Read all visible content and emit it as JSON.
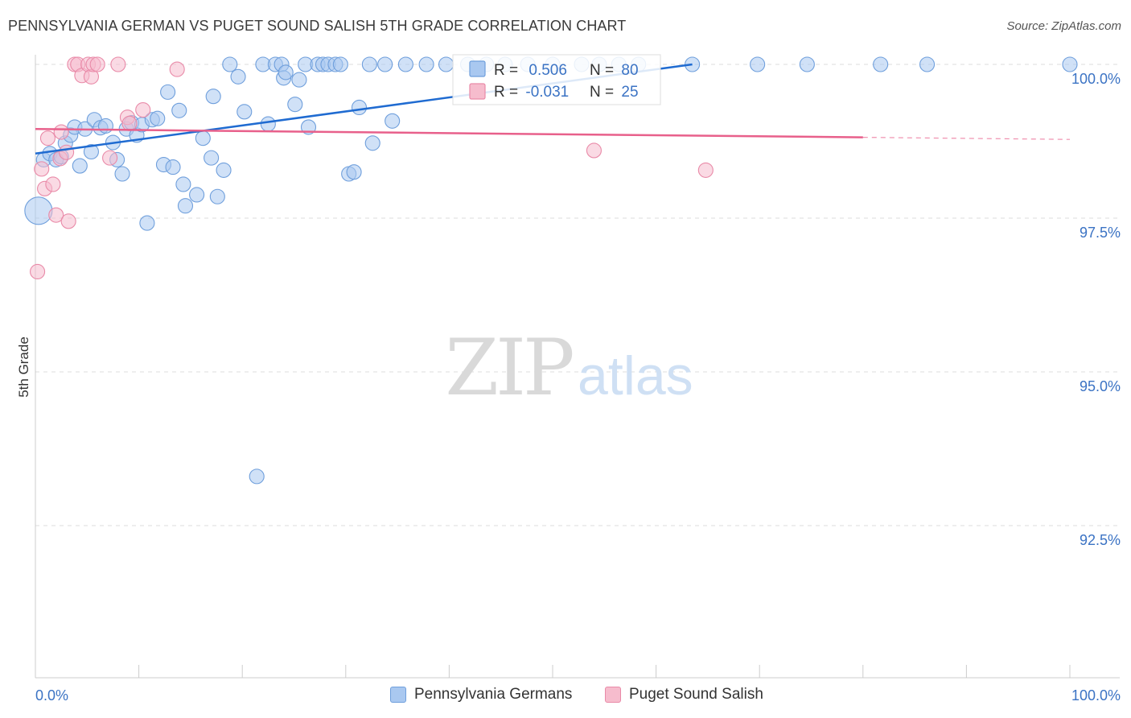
{
  "header": {
    "title": "PENNSYLVANIA GERMAN VS PUGET SOUND SALISH 5TH GRADE CORRELATION CHART",
    "source": "Source: ZipAtlas.com"
  },
  "watermark": {
    "zip": "ZIP",
    "atlas": "atlas"
  },
  "colors": {
    "blue_fill": "#a9c8f0",
    "blue_stroke": "#6f9fdc",
    "blue_line": "#1f6bd1",
    "pink_fill": "#f6bccd",
    "pink_stroke": "#e98aa8",
    "pink_line": "#e8608b",
    "axis_text": "#3b73c4",
    "grid": "#dcdcdc"
  },
  "legend_box": {
    "rows": [
      {
        "r_label": "R = ",
        "r_value": "0.506",
        "n_label": "N = ",
        "n_value": "80"
      },
      {
        "r_label": "R = ",
        "r_value": "-0.031",
        "n_label": "N = ",
        "n_value": "25"
      }
    ]
  },
  "chart_data": {
    "type": "scatter",
    "title": "PENNSYLVANIA GERMAN VS PUGET SOUND SALISH 5TH GRADE CORRELATION CHART",
    "xlabel": "",
    "ylabel": "5th Grade",
    "xlim": [
      0,
      100
    ],
    "ylim": [
      90.2,
      100.4
    ],
    "x_tick_labels": [
      "0.0%",
      "100.0%"
    ],
    "y_ticks": [
      100.0,
      97.5,
      95.0,
      92.5
    ],
    "y_tick_labels": [
      "100.0%",
      "97.5%",
      "95.0%",
      "92.5%"
    ],
    "grid": true,
    "legend": "bottom-center",
    "series": [
      {
        "name": "Pennsylvania Germans",
        "color": "#a9c8f0",
        "r": 0.506,
        "n": 80,
        "trend": {
          "x": [
            0,
            63.5
          ],
          "y": [
            98.55,
            100.0
          ]
        },
        "points": [
          {
            "x": 0.3,
            "y": 97.62,
            "big": true
          },
          {
            "x": 0.8,
            "y": 98.45
          },
          {
            "x": 1.4,
            "y": 98.55
          },
          {
            "x": 2.0,
            "y": 98.45
          },
          {
            "x": 2.5,
            "y": 98.5
          },
          {
            "x": 2.9,
            "y": 98.72
          },
          {
            "x": 3.4,
            "y": 98.85
          },
          {
            "x": 3.8,
            "y": 98.98
          },
          {
            "x": 4.3,
            "y": 98.35
          },
          {
            "x": 4.8,
            "y": 98.95
          },
          {
            "x": 5.4,
            "y": 98.58
          },
          {
            "x": 5.7,
            "y": 99.1
          },
          {
            "x": 6.3,
            "y": 98.97
          },
          {
            "x": 6.8,
            "y": 99.0
          },
          {
            "x": 7.5,
            "y": 98.73
          },
          {
            "x": 7.9,
            "y": 98.45
          },
          {
            "x": 8.4,
            "y": 98.22
          },
          {
            "x": 8.8,
            "y": 98.95
          },
          {
            "x": 9.3,
            "y": 99.05
          },
          {
            "x": 9.8,
            "y": 98.85
          },
          {
            "x": 10.3,
            "y": 99.02
          },
          {
            "x": 10.8,
            "y": 97.42
          },
          {
            "x": 11.3,
            "y": 99.1
          },
          {
            "x": 11.8,
            "y": 99.12
          },
          {
            "x": 12.4,
            "y": 98.37
          },
          {
            "x": 12.8,
            "y": 99.55
          },
          {
            "x": 13.3,
            "y": 98.33
          },
          {
            "x": 13.9,
            "y": 99.25
          },
          {
            "x": 14.3,
            "y": 98.05
          },
          {
            "x": 14.5,
            "y": 97.7
          },
          {
            "x": 15.6,
            "y": 97.88
          },
          {
            "x": 16.2,
            "y": 98.8
          },
          {
            "x": 17.0,
            "y": 98.48
          },
          {
            "x": 17.2,
            "y": 99.48
          },
          {
            "x": 17.6,
            "y": 97.85
          },
          {
            "x": 18.2,
            "y": 98.28
          },
          {
            "x": 18.8,
            "y": 100.0
          },
          {
            "x": 19.6,
            "y": 99.8
          },
          {
            "x": 20.2,
            "y": 99.23
          },
          {
            "x": 21.4,
            "y": 93.3
          },
          {
            "x": 22.0,
            "y": 100.0
          },
          {
            "x": 22.5,
            "y": 99.03
          },
          {
            "x": 23.2,
            "y": 100.0
          },
          {
            "x": 23.8,
            "y": 100.0
          },
          {
            "x": 24.0,
            "y": 99.78
          },
          {
            "x": 24.2,
            "y": 99.87
          },
          {
            "x": 25.1,
            "y": 99.35
          },
          {
            "x": 25.5,
            "y": 99.75
          },
          {
            "x": 26.1,
            "y": 100.0
          },
          {
            "x": 26.4,
            "y": 98.98
          },
          {
            "x": 27.3,
            "y": 100.0
          },
          {
            "x": 27.8,
            "y": 100.0
          },
          {
            "x": 28.3,
            "y": 100.0
          },
          {
            "x": 29.0,
            "y": 100.0
          },
          {
            "x": 29.5,
            "y": 100.0
          },
          {
            "x": 30.3,
            "y": 98.22
          },
          {
            "x": 30.8,
            "y": 98.25
          },
          {
            "x": 31.3,
            "y": 99.3
          },
          {
            "x": 32.3,
            "y": 100.0
          },
          {
            "x": 32.6,
            "y": 98.72
          },
          {
            "x": 33.8,
            "y": 100.0
          },
          {
            "x": 34.5,
            "y": 99.08
          },
          {
            "x": 35.8,
            "y": 100.0
          },
          {
            "x": 37.8,
            "y": 100.0
          },
          {
            "x": 39.7,
            "y": 100.0
          },
          {
            "x": 41.8,
            "y": 100.0
          },
          {
            "x": 43.6,
            "y": 100.0
          },
          {
            "x": 45.4,
            "y": 100.0
          },
          {
            "x": 47.6,
            "y": 100.0
          },
          {
            "x": 50.0,
            "y": 100.0
          },
          {
            "x": 52.8,
            "y": 100.0
          },
          {
            "x": 54.5,
            "y": 100.0
          },
          {
            "x": 56.4,
            "y": 100.0
          },
          {
            "x": 58.3,
            "y": 100.0
          },
          {
            "x": 63.5,
            "y": 100.0
          },
          {
            "x": 69.8,
            "y": 100.0
          },
          {
            "x": 74.6,
            "y": 100.0
          },
          {
            "x": 81.7,
            "y": 100.0
          },
          {
            "x": 86.2,
            "y": 100.0
          },
          {
            "x": 100.0,
            "y": 100.0
          }
        ]
      },
      {
        "name": "Puget Sound Salish",
        "color": "#f6bccd",
        "r": -0.031,
        "n": 25,
        "trend": {
          "x": [
            0,
            100
          ],
          "y": [
            98.95,
            98.78
          ]
        },
        "trend_solid_to_x": 80,
        "points": [
          {
            "x": 0.2,
            "y": 96.63
          },
          {
            "x": 0.6,
            "y": 98.3
          },
          {
            "x": 0.9,
            "y": 97.98
          },
          {
            "x": 1.2,
            "y": 98.8
          },
          {
            "x": 1.7,
            "y": 98.05
          },
          {
            "x": 2.0,
            "y": 97.55
          },
          {
            "x": 2.4,
            "y": 98.47
          },
          {
            "x": 2.5,
            "y": 98.9
          },
          {
            "x": 3.0,
            "y": 98.57
          },
          {
            "x": 3.2,
            "y": 97.45
          },
          {
            "x": 3.8,
            "y": 100.0
          },
          {
            "x": 4.1,
            "y": 100.0
          },
          {
            "x": 4.5,
            "y": 99.82
          },
          {
            "x": 5.1,
            "y": 100.0
          },
          {
            "x": 5.4,
            "y": 99.8
          },
          {
            "x": 5.6,
            "y": 100.0
          },
          {
            "x": 6.0,
            "y": 100.0
          },
          {
            "x": 7.2,
            "y": 98.48
          },
          {
            "x": 8.0,
            "y": 100.0
          },
          {
            "x": 8.9,
            "y": 99.14
          },
          {
            "x": 9.1,
            "y": 99.04
          },
          {
            "x": 10.4,
            "y": 99.26
          },
          {
            "x": 13.7,
            "y": 99.92
          },
          {
            "x": 54.0,
            "y": 98.6
          },
          {
            "x": 64.8,
            "y": 98.28
          }
        ]
      }
    ]
  }
}
